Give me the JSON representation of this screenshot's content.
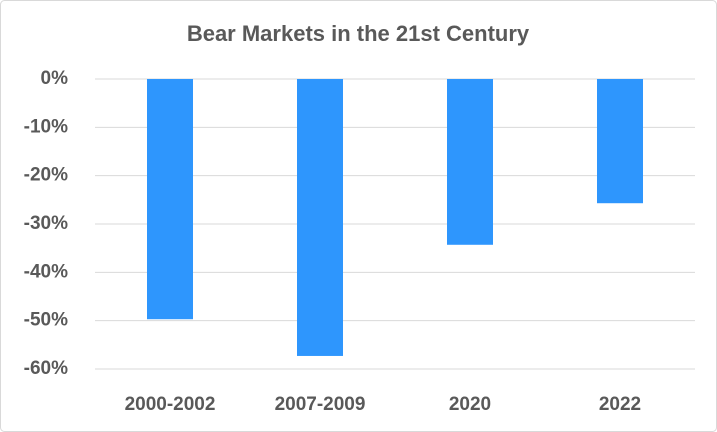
{
  "chart_data": {
    "type": "bar",
    "title": "Bear Markets in the 21st Century",
    "categories": [
      "2000-2002",
      "2007-2009",
      "2020",
      "2022"
    ],
    "values": [
      -49.7,
      -57.3,
      -34.3,
      -25.7
    ],
    "color": "#2e96fd",
    "ylim": [
      -60,
      0
    ],
    "yticks": [
      {
        "value": 0,
        "label": "0%"
      },
      {
        "value": -10,
        "label": "-10%"
      },
      {
        "value": -20,
        "label": "-20%"
      },
      {
        "value": -30,
        "label": "-30%"
      },
      {
        "value": -40,
        "label": "-40%"
      },
      {
        "value": -50,
        "label": "-50%"
      },
      {
        "value": -60,
        "label": "-60%"
      }
    ],
    "grid": true
  }
}
